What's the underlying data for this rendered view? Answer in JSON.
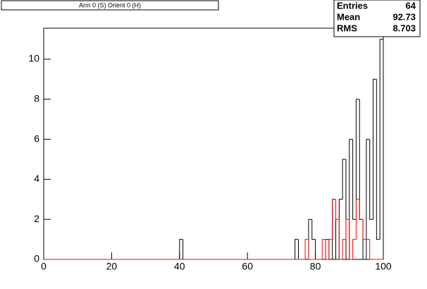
{
  "chart_data": {
    "type": "histogram",
    "title": "Arm 0 (S) Orient 0 (H)",
    "bins": [
      0,
      1,
      2,
      3,
      4,
      5,
      6,
      7,
      8,
      9,
      10,
      11,
      12,
      13,
      14,
      15,
      16,
      17,
      18,
      19,
      20,
      21,
      22,
      23,
      24,
      25,
      26,
      27,
      28,
      29,
      30,
      31,
      32,
      33,
      34,
      35,
      36,
      37,
      38,
      39,
      40,
      41,
      42,
      43,
      44,
      45,
      46,
      47,
      48,
      49,
      50,
      51,
      52,
      53,
      54,
      55,
      56,
      57,
      58,
      59,
      60,
      61,
      62,
      63,
      64,
      65,
      66,
      67,
      68,
      69,
      70,
      71,
      72,
      73,
      74,
      75,
      76,
      77,
      78,
      79,
      80,
      81,
      82,
      83,
      84,
      85,
      86,
      87,
      88,
      89,
      90,
      91,
      92,
      93,
      94,
      95,
      96,
      97,
      98,
      99,
      100
    ],
    "series": [
      {
        "color": "#000000",
        "values": [
          0,
          0,
          0,
          0,
          0,
          0,
          0,
          0,
          0,
          0,
          0,
          0,
          0,
          0,
          0,
          0,
          0,
          0,
          0,
          0,
          0,
          0,
          0,
          0,
          0,
          0,
          0,
          0,
          0,
          0,
          0,
          0,
          0,
          0,
          0,
          0,
          0,
          0,
          0,
          0,
          1,
          0,
          0,
          0,
          0,
          0,
          0,
          0,
          0,
          0,
          0,
          0,
          0,
          0,
          0,
          0,
          0,
          0,
          0,
          0,
          0,
          0,
          0,
          0,
          0,
          0,
          0,
          0,
          0,
          0,
          0,
          0,
          0,
          0,
          1,
          0,
          0,
          0,
          2,
          1,
          0,
          0,
          0,
          1,
          0,
          3,
          0,
          3,
          5,
          0,
          6,
          2,
          8,
          2,
          0,
          6,
          2,
          9,
          1,
          11
        ]
      },
      {
        "color": "#ff0000",
        "values": [
          0,
          0,
          0,
          0,
          0,
          0,
          0,
          0,
          0,
          0,
          0,
          0,
          0,
          0,
          0,
          0,
          0,
          0,
          0,
          0,
          0,
          0,
          0,
          0,
          0,
          0,
          0,
          0,
          0,
          0,
          0,
          0,
          0,
          0,
          0,
          0,
          0,
          0,
          0,
          0,
          0,
          0,
          0,
          0,
          0,
          0,
          0,
          0,
          0,
          0,
          0,
          0,
          0,
          0,
          0,
          0,
          0,
          0,
          0,
          0,
          0,
          0,
          0,
          0,
          0,
          0,
          0,
          0,
          0,
          0,
          0,
          0,
          0,
          0,
          0,
          0,
          0,
          1,
          0,
          0,
          0,
          0,
          1,
          0,
          1,
          3,
          2,
          0,
          1,
          2,
          0,
          1,
          3,
          2,
          1,
          1,
          0,
          0,
          0,
          0
        ]
      }
    ],
    "xlim": [
      0,
      100
    ],
    "xticks": [
      0,
      20,
      40,
      60,
      80,
      100
    ],
    "ylim": [
      0,
      11.55
    ],
    "yticks": [
      0,
      2,
      4,
      6,
      8,
      10
    ],
    "stats": {
      "labels": [
        "Entries",
        "Mean",
        "RMS"
      ],
      "values": [
        "64",
        "92.73",
        "8.703"
      ]
    }
  }
}
